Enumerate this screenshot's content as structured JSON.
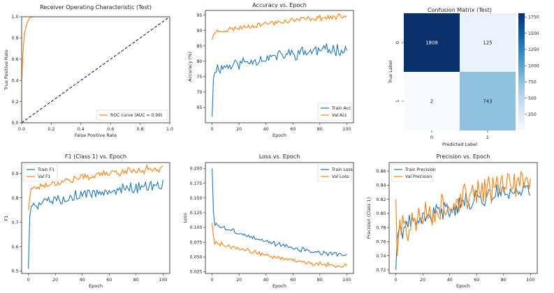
{
  "colors": {
    "blue": "#1f77b4",
    "orange": "#ff7f0e",
    "navy": "#000080"
  },
  "chart_data": [
    {
      "id": "roc",
      "type": "line",
      "title": "Receiver Operating Characteristic (Test)",
      "xlabel": "False Positive Rate",
      "ylabel": "True Positive Rate",
      "xlim": [
        0,
        1
      ],
      "ylim": [
        0,
        1
      ],
      "xticks": [
        0.0,
        0.2,
        0.4,
        0.6,
        0.8,
        1.0
      ],
      "yticks": [
        0.0,
        0.2,
        0.4,
        0.6,
        0.8,
        1.0
      ],
      "tick_decimals": 1,
      "legend_position": "lower-right",
      "series": [
        {
          "name": "ROC curve (AUC = 0.99)",
          "color": "#ff7f0e",
          "x": [
            0,
            0,
            0.005,
            0.01,
            0.015,
            0.02,
            0.03,
            0.04,
            0.05,
            0.06,
            0.08,
            0.1,
            0.2,
            0.4,
            0.6,
            0.8,
            1.0
          ],
          "y": [
            0,
            0.38,
            0.55,
            0.68,
            0.78,
            0.85,
            0.91,
            0.95,
            0.98,
            0.995,
            1.0,
            1.0,
            1.0,
            1.0,
            1.0,
            1.0,
            1.0
          ]
        },
        {
          "name": "",
          "color": "#000080",
          "dashed": true,
          "x": [
            0,
            1
          ],
          "y": [
            0,
            1
          ]
        }
      ]
    },
    {
      "id": "acc",
      "type": "line",
      "title": "Accuracy vs. Epoch",
      "xlabel": "Epoch",
      "ylabel": "Accuracy (%)",
      "xlim": [
        -5,
        105
      ],
      "ylim": [
        60,
        96.5
      ],
      "xticks": [
        0,
        20,
        40,
        60,
        80,
        100
      ],
      "yticks": [
        65,
        70,
        75,
        80,
        85,
        90,
        95
      ],
      "tick_decimals": 0,
      "legend_position": "lower-right",
      "series": [
        {
          "name": "Train Acc",
          "color": "#1f77b4",
          "n": 101,
          "start": 62,
          "second": 74.5,
          "plateau_from": 77.5,
          "plateau_to": 84,
          "noise": 1.6,
          "seed": 11
        },
        {
          "name": "Val Acc",
          "color": "#ff7f0e",
          "n": 101,
          "start": 87,
          "second": 88.5,
          "plateau_from": 89.5,
          "plateau_to": 94.5,
          "noise": 0.7,
          "seed": 23
        }
      ]
    },
    {
      "id": "cm",
      "type": "heatmap",
      "title": "Confusion Matrix (Test)",
      "xlabel": "Predicted Label",
      "ylabel": "True Label",
      "row_labels": [
        "0",
        "1"
      ],
      "col_labels": [
        "0",
        "1"
      ],
      "values": [
        [
          1808,
          125
        ],
        [
          2,
          743
        ]
      ],
      "colorbar_ticks": [
        250,
        500,
        750,
        1000,
        1250,
        1500,
        1750
      ],
      "colorbar_range": [
        2,
        1808
      ]
    },
    {
      "id": "f1",
      "type": "line",
      "title": "F1 (Class 1) vs. Epoch",
      "xlabel": "Epoch",
      "ylabel": "F1",
      "xlim": [
        -5,
        105
      ],
      "ylim": [
        0.49,
        0.945
      ],
      "xticks": [
        0,
        20,
        40,
        60,
        80,
        100
      ],
      "yticks": [
        0.5,
        0.6,
        0.7,
        0.8,
        0.9
      ],
      "tick_decimals": 1,
      "legend_position": "top-left",
      "series": [
        {
          "name": "Train F1",
          "color": "#1f77b4",
          "n": 101,
          "start": 0.51,
          "second": 0.72,
          "plateau_from": 0.77,
          "plateau_to": 0.85,
          "noise": 0.018,
          "seed": 5
        },
        {
          "name": "Val F1",
          "color": "#ff7f0e",
          "n": 101,
          "start": 0.75,
          "second": 0.8,
          "plateau_from": 0.84,
          "plateau_to": 0.92,
          "noise": 0.012,
          "seed": 17
        }
      ]
    },
    {
      "id": "loss",
      "type": "line",
      "title": "Loss vs. Epoch",
      "xlabel": "Epoch",
      "ylabel": "Loss",
      "xlim": [
        -5,
        105
      ],
      "ylim": [
        0.022,
        0.21
      ],
      "xticks": [
        0,
        20,
        40,
        60,
        80,
        100
      ],
      "yticks": [
        0.025,
        0.05,
        0.075,
        0.1,
        0.125,
        0.15,
        0.175,
        0.2
      ],
      "tick_decimals": 3,
      "legend_position": "top-right",
      "series": [
        {
          "name": "Train Loss",
          "color": "#1f77b4",
          "n": 101,
          "start": 0.2,
          "second": 0.125,
          "plateau_from": 0.105,
          "plateau_to": 0.053,
          "noise": 0.003,
          "seed": 3
        },
        {
          "name": "Val Loss",
          "color": "#ff7f0e",
          "n": 101,
          "start": 0.108,
          "second": 0.085,
          "plateau_from": 0.075,
          "plateau_to": 0.035,
          "noise": 0.003,
          "seed": 9
        }
      ]
    },
    {
      "id": "prec",
      "type": "line",
      "title": "Precision vs. Epoch",
      "xlabel": "Epoch",
      "ylabel": "Precision (Class 1)",
      "xlim": [
        -5,
        105
      ],
      "ylim": [
        0.715,
        0.872
      ],
      "xticks": [
        0,
        20,
        40,
        60,
        80,
        100
      ],
      "yticks": [
        0.72,
        0.74,
        0.76,
        0.78,
        0.8,
        0.82,
        0.84,
        0.86
      ],
      "tick_decimals": 2,
      "legend_position": "top-left",
      "series": [
        {
          "name": "Train Precision",
          "color": "#1f77b4",
          "n": 101,
          "start": 0.72,
          "second": 0.765,
          "plateau_from": 0.775,
          "plateau_to": 0.835,
          "noise": 0.011,
          "seed": 41
        },
        {
          "name": "Val Precision",
          "color": "#ff7f0e",
          "n": 101,
          "start": 0.82,
          "second": 0.74,
          "plateau_from": 0.775,
          "plateau_to": 0.845,
          "noise": 0.016,
          "seed": 57
        }
      ]
    }
  ]
}
